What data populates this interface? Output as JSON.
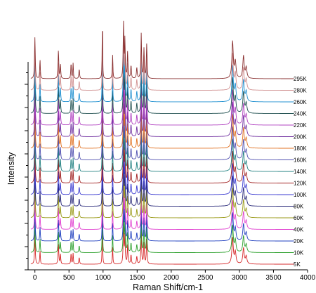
{
  "chart_data": {
    "type": "line",
    "title": "",
    "xlabel": "Raman Shift/cm-1",
    "ylabel": "Intensity",
    "xlim": [
      -100,
      4000
    ],
    "x_ticks": [
      "0",
      "500",
      "1000",
      "1500",
      "2000",
      "2500",
      "3000",
      "3500",
      "4000"
    ],
    "y_tick_labels_shown": false,
    "grid": false,
    "legend": "series labels printed at right end of each trace",
    "peak_positions": [
      0,
      75,
      345,
      375,
      530,
      560,
      650,
      990,
      1140,
      1300,
      1320,
      1360,
      1410,
      1495,
      1560,
      1600,
      1640,
      2900,
      2940,
      3060,
      3100
    ],
    "offset_step": 1,
    "series": [
      {
        "name": "5K",
        "color": "#d62728"
      },
      {
        "name": "10K",
        "color": "#2ca02c"
      },
      {
        "name": "20K",
        "color": "#1f3fbf"
      },
      {
        "name": "40K",
        "color": "#e040d0"
      },
      {
        "name": "60K",
        "color": "#9a9a18"
      },
      {
        "name": "80K",
        "color": "#2a2a7a"
      },
      {
        "name": "100K",
        "color": "#3a3ad0"
      },
      {
        "name": "120K",
        "color": "#a02020"
      },
      {
        "name": "140K",
        "color": "#208080"
      },
      {
        "name": "160K",
        "color": "#5050b0"
      },
      {
        "name": "180K",
        "color": "#e07020"
      },
      {
        "name": "200K",
        "color": "#7030a0"
      },
      {
        "name": "220K",
        "color": "#b040c0"
      },
      {
        "name": "240K",
        "color": "#205050"
      },
      {
        "name": "260K",
        "color": "#2090d0"
      },
      {
        "name": "280K",
        "color": "#d09090"
      },
      {
        "name": "295K",
        "color": "#8a3030"
      }
    ]
  }
}
